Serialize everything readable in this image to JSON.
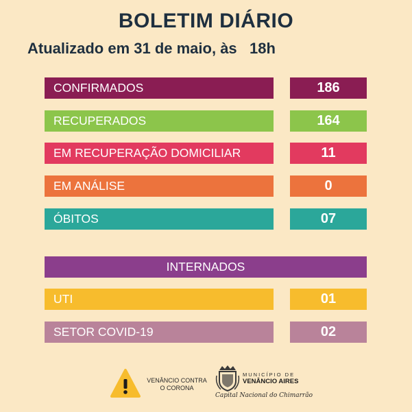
{
  "title": "BOLETIM DIÁRIO",
  "subtitle": "Atualizado em 31 de maio, às   18h",
  "colors": {
    "background": "#FBE8C5",
    "confirmados": "#8A1D53",
    "recuperados": "#8CC54B",
    "em_recuperacao": "#E23A5F",
    "em_analise": "#EC733D",
    "obitos": "#2BA79A",
    "internados": "#8B3E8C",
    "uti": "#F7BC2D",
    "setor_covid": "#B9839A"
  },
  "stats": [
    {
      "label": "CONFIRMADOS",
      "value": "186"
    },
    {
      "label": "RECUPERADOS",
      "value": "164"
    },
    {
      "label": "EM RECUPERAÇÃO DOMICILIAR",
      "value": "11"
    },
    {
      "label": "EM ANÁLISE",
      "value": "0"
    },
    {
      "label": "ÓBITOS",
      "value": "07"
    }
  ],
  "internados": {
    "header": "INTERNADOS",
    "items": [
      {
        "label": "UTI",
        "value": "01"
      },
      {
        "label": "SETOR COVID-19",
        "value": "02"
      }
    ]
  },
  "footer": {
    "campaign_line1": "VENÂNCIO CONTRA",
    "campaign_line2": "O CORONA",
    "municipio_small": "MUNICÍPIO DE",
    "municipio_name": "VENÂNCIO AIRES",
    "municipio_slogan": "Capital Nacional do Chimarrão",
    "warning_icon": "warning-triangle-icon",
    "crest_icon": "municipal-crest-icon"
  }
}
